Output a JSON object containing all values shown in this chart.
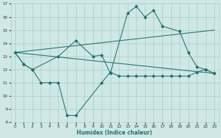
{
  "xlabel": "Humidex (Indice chaleur)",
  "bg_color": "#cfe8e5",
  "grid_color": "#aacfcc",
  "line_color": "#1e7272",
  "xlim": [
    -0.5,
    23.5
  ],
  "ylim": [
    8,
    17
  ],
  "xticks": [
    0,
    1,
    2,
    3,
    4,
    5,
    6,
    7,
    8,
    9,
    10,
    11,
    12,
    13,
    14,
    15,
    16,
    17,
    18,
    19,
    20,
    21,
    22,
    23
  ],
  "yticks": [
    8,
    9,
    10,
    11,
    12,
    13,
    14,
    15,
    16,
    17
  ],
  "line1_x": [
    0,
    1,
    2,
    3,
    4,
    5,
    6,
    7,
    10,
    11,
    12,
    13,
    14,
    15,
    16,
    17,
    18,
    19,
    20,
    21,
    22,
    23
  ],
  "line1_y": [
    13.3,
    12.4,
    12.0,
    11.0,
    11.0,
    11.0,
    8.5,
    8.5,
    11.0,
    11.8,
    11.5,
    11.5,
    11.5,
    11.5,
    11.5,
    11.5,
    11.5,
    11.5,
    11.5,
    11.8,
    12.0,
    11.7
  ],
  "line2_x": [
    0,
    1,
    2,
    5,
    7,
    9,
    10,
    11,
    13,
    14,
    15,
    16,
    17,
    19,
    20,
    21,
    22,
    23
  ],
  "line2_y": [
    13.3,
    12.4,
    12.0,
    13.0,
    14.2,
    13.0,
    13.1,
    11.7,
    16.3,
    16.8,
    16.0,
    16.5,
    15.3,
    14.9,
    13.3,
    12.2,
    12.0,
    11.7
  ],
  "line3_x": [
    0,
    23
  ],
  "line3_y": [
    13.3,
    11.7
  ],
  "line4_x": [
    0,
    23
  ],
  "line4_y": [
    13.3,
    15.0
  ]
}
